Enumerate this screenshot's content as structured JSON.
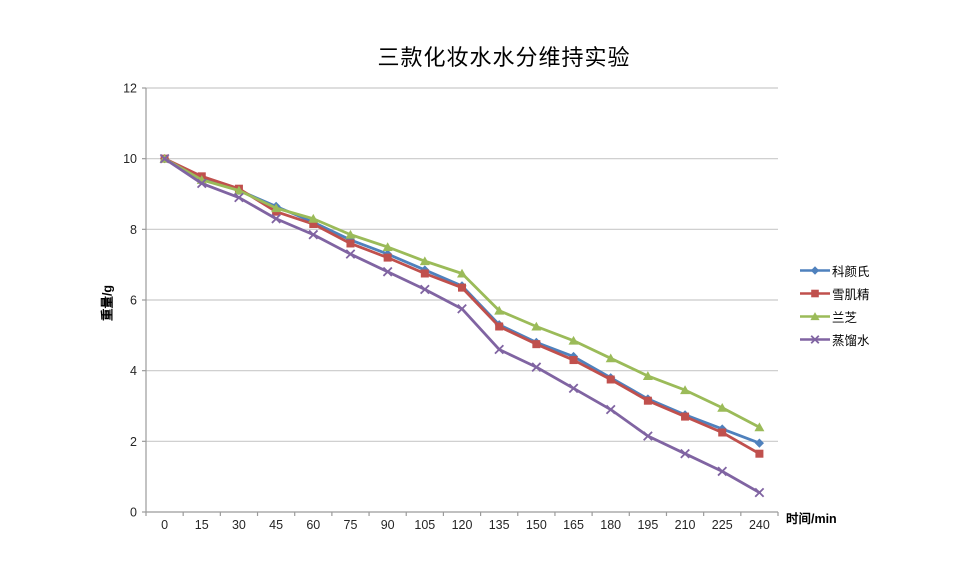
{
  "chart_data": {
    "type": "line",
    "title": "三款化妆水水分维持实验",
    "xlabel": "时间/min",
    "ylabel": "重量/g",
    "categories": [
      0,
      15,
      30,
      45,
      60,
      75,
      90,
      105,
      120,
      135,
      150,
      165,
      180,
      195,
      210,
      225,
      240
    ],
    "series": [
      {
        "name": "科颜氏",
        "color": "#4F81BD",
        "marker": "diamond",
        "values": [
          10,
          9.45,
          9.1,
          8.65,
          8.2,
          7.7,
          7.3,
          6.85,
          6.4,
          5.3,
          4.8,
          4.4,
          3.8,
          3.2,
          2.75,
          2.35,
          1.95
        ]
      },
      {
        "name": "雪肌精",
        "color": "#C0504D",
        "marker": "square",
        "values": [
          10,
          9.5,
          9.15,
          8.5,
          8.15,
          7.6,
          7.2,
          6.75,
          6.35,
          5.25,
          4.75,
          4.3,
          3.75,
          3.15,
          2.7,
          2.25,
          1.65
        ]
      },
      {
        "name": "兰芝",
        "color": "#9BBB59",
        "marker": "triangle",
        "values": [
          10,
          9.4,
          9.1,
          8.6,
          8.3,
          7.85,
          7.5,
          7.1,
          6.75,
          5.7,
          5.25,
          4.85,
          4.35,
          3.85,
          3.45,
          2.95,
          2.4
        ]
      },
      {
        "name": "蒸馏水",
        "color": "#8064A2",
        "marker": "x",
        "values": [
          10,
          9.3,
          8.9,
          8.3,
          7.85,
          7.3,
          6.8,
          6.3,
          5.75,
          4.6,
          4.1,
          3.5,
          2.9,
          2.15,
          1.65,
          1.15,
          0.55
        ]
      }
    ],
    "ylim": [
      0,
      12
    ],
    "ytick_step": 2,
    "grid": true,
    "legend_position": "right",
    "colors": {
      "grid": "#c9c9c9",
      "axis": "#9b9b9b",
      "tick_text": "#262626",
      "background": "#ffffff"
    }
  }
}
